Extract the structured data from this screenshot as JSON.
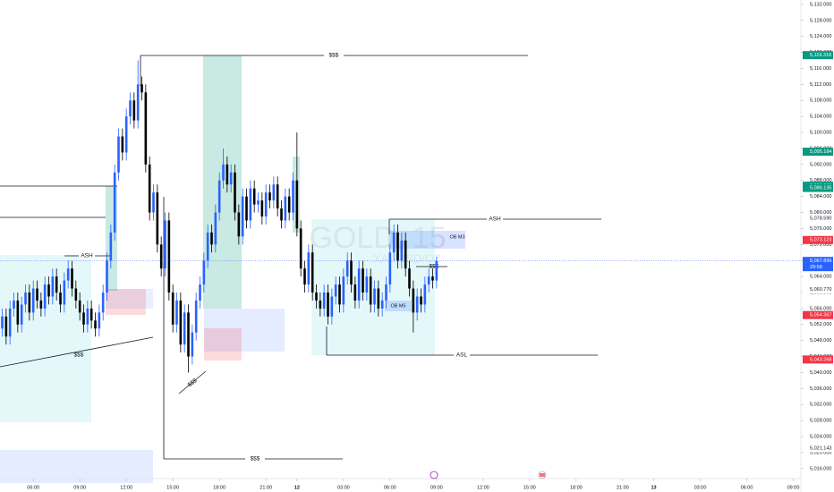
{
  "chart_data": {
    "type": "candlestick",
    "watermark": "GOLD, 15",
    "watermark_sub": "XAUUSD/OZ",
    "up_color": "#2962ff",
    "down_color": "#000000",
    "countdown": "29:58",
    "xlim": [
      -0.58,
      205.96
    ],
    "ylim": [
      5013.5,
      5133.1
    ],
    "xticks": [
      {
        "value": 8,
        "label": "06:00"
      },
      {
        "value": 20,
        "label": "09:00"
      },
      {
        "value": 32,
        "label": "12:00"
      },
      {
        "value": 44,
        "label": "15:00"
      },
      {
        "value": 56,
        "label": "18:00"
      },
      {
        "value": 68,
        "label": "21:00"
      },
      {
        "value": 76,
        "label": "12"
      },
      {
        "value": 88,
        "label": "03:00"
      },
      {
        "value": 100,
        "label": "06:00"
      },
      {
        "value": 112,
        "label": "09:00"
      },
      {
        "value": 124,
        "label": "12:00"
      },
      {
        "value": 136,
        "label": "15:00"
      },
      {
        "value": 148,
        "label": "18:00"
      },
      {
        "value": 160,
        "label": "21:00"
      },
      {
        "value": 168,
        "label": "13"
      },
      {
        "value": 180,
        "label": "03:00"
      },
      {
        "value": 192,
        "label": "06:00"
      },
      {
        "value": 204,
        "label": "09:00"
      }
    ],
    "yticks": [
      {
        "value": 5016,
        "label": "5,016.000"
      },
      {
        "value": 5020,
        "label": "5,020.000"
      },
      {
        "value": 5024,
        "label": "5,024.000"
      },
      {
        "value": 5028,
        "label": "5,028.000"
      },
      {
        "value": 5032,
        "label": "5,032.000"
      },
      {
        "value": 5036,
        "label": "5,036.000"
      },
      {
        "value": 5040,
        "label": "5,040.000"
      },
      {
        "value": 5044,
        "label": "5,044.000"
      },
      {
        "value": 5048,
        "label": "5,048.000"
      },
      {
        "value": 5052,
        "label": "5,052.000"
      },
      {
        "value": 5056,
        "label": "5,056.000"
      },
      {
        "value": 5060,
        "label": "5,060.000"
      },
      {
        "value": 5064,
        "label": "5,064.000"
      },
      {
        "value": 5068,
        "label": "5,068.000"
      },
      {
        "value": 5072,
        "label": "5,072.000"
      },
      {
        "value": 5076,
        "label": "5,076.000"
      },
      {
        "value": 5080,
        "label": "5,080.000"
      },
      {
        "value": 5084,
        "label": "5,084.000"
      },
      {
        "value": 5088,
        "label": "5,088.000"
      },
      {
        "value": 5092,
        "label": "5,092.000"
      },
      {
        "value": 5096,
        "label": "5,096.000"
      },
      {
        "value": 5100,
        "label": "5,100.000"
      },
      {
        "value": 5104,
        "label": "5,104.000"
      },
      {
        "value": 5108,
        "label": "5,108.000"
      },
      {
        "value": 5112,
        "label": "5,112.000"
      },
      {
        "value": 5116,
        "label": "5,116.000"
      },
      {
        "value": 5120,
        "label": "5,120.000"
      },
      {
        "value": 5124,
        "label": "5,124.000"
      },
      {
        "value": 5128,
        "label": "5,128.000"
      },
      {
        "value": 5132,
        "label": "5,132.000"
      }
    ],
    "price_labels": [
      {
        "value": 5119.318,
        "label": "5,119.318",
        "color": "#089981"
      },
      {
        "value": 5095.184,
        "label": "5,095.184",
        "color": "#089981"
      },
      {
        "value": 5086.698,
        "label": "5,086.698",
        "color": "#089981"
      },
      {
        "value": 5086.135,
        "label": "5,086.135",
        "color": "#089981"
      },
      {
        "value": 5078.59,
        "label": "5,078.590",
        "color": "#ffffff"
      },
      {
        "value": 5073.123,
        "label": "5,073.123",
        "color": "#f23645"
      },
      {
        "value": 5067.896,
        "label": "5,067.896",
        "color": "#2962ff"
      },
      {
        "value": 5060.77,
        "label": "5,060.770",
        "color": "#ffffff"
      },
      {
        "value": 5054.367,
        "label": "5,054.367",
        "color": "#f23645"
      },
      {
        "value": 5043.268,
        "label": "5,043.268",
        "color": "#f23645"
      },
      {
        "value": 5021.143,
        "label": "5,021.143",
        "color": "#ffffff"
      }
    ],
    "annotations": [
      "$$$",
      "ASH",
      "$$$",
      "$$$",
      "$$$",
      "ASH",
      "OB M3",
      "$$$",
      "OB M5",
      "ASL"
    ],
    "open": [
      5051,
      5054,
      5049,
      5056,
      5058,
      5052,
      5057,
      5060,
      5055,
      5061,
      5058,
      5056,
      5062,
      5059,
      5064,
      5060,
      5057,
      5063,
      5066,
      5061,
      5058,
      5055,
      5052,
      5056,
      5053,
      5051,
      5055,
      5060,
      5068,
      5075,
      5090,
      5099,
      5095,
      5104,
      5108,
      5103,
      5112,
      5110,
      5092,
      5080,
      5085,
      5072,
      5066,
      5078,
      5060,
      5052,
      5058,
      5047,
      5055,
      5044,
      5050,
      5058,
      5062,
      5068,
      5075,
      5072,
      5080,
      5088,
      5092,
      5087,
      5090,
      5080,
      5074,
      5084,
      5078,
      5086,
      5082,
      5083,
      5079,
      5085,
      5083,
      5087,
      5081,
      5078,
      5084,
      5080,
      5088,
      5076,
      5066,
      5062,
      5070,
      5060,
      5058,
      5056,
      5060,
      5054,
      5059,
      5062,
      5057,
      5064,
      5068,
      5062,
      5058,
      5066,
      5060,
      5064,
      5057,
      5061,
      5056,
      5058,
      5062,
      5070,
      5075,
      5068,
      5073,
      5066,
      5061,
      5055,
      5059,
      5057,
      5062,
      5064,
      5063
    ],
    "high": [
      5056,
      5056,
      5058,
      5060,
      5060,
      5059,
      5062,
      5062,
      5063,
      5063,
      5060,
      5064,
      5064,
      5066,
      5066,
      5062,
      5065,
      5068,
      5068,
      5063,
      5060,
      5057,
      5058,
      5058,
      5055,
      5057,
      5062,
      5070,
      5077,
      5092,
      5101,
      5101,
      5106,
      5110,
      5110,
      5118,
      5114,
      5112,
      5094,
      5087,
      5087,
      5074,
      5080,
      5080,
      5062,
      5060,
      5060,
      5057,
      5057,
      5052,
      5060,
      5064,
      5070,
      5077,
      5077,
      5082,
      5090,
      5096,
      5094,
      5092,
      5092,
      5082,
      5086,
      5086,
      5088,
      5088,
      5085,
      5085,
      5087,
      5087,
      5089,
      5089,
      5083,
      5086,
      5086,
      5090,
      5100,
      5078,
      5068,
      5072,
      5072,
      5062,
      5060,
      5062,
      5062,
      5061,
      5064,
      5064,
      5066,
      5070,
      5070,
      5064,
      5068,
      5068,
      5066,
      5066,
      5063,
      5063,
      5060,
      5064,
      5072,
      5077,
      5077,
      5075,
      5075,
      5068,
      5063,
      5061,
      5061,
      5064,
      5066,
      5066,
      5069
    ],
    "low": [
      5049,
      5047,
      5047,
      5054,
      5050,
      5050,
      5055,
      5053,
      5053,
      5056,
      5054,
      5054,
      5057,
      5057,
      5058,
      5055,
      5055,
      5061,
      5059,
      5056,
      5053,
      5050,
      5050,
      5051,
      5049,
      5049,
      5053,
      5058,
      5066,
      5073,
      5088,
      5093,
      5093,
      5102,
      5101,
      5101,
      5108,
      5090,
      5078,
      5078,
      5070,
      5064,
      5064,
      5058,
      5050,
      5050,
      5045,
      5045,
      5040,
      5042,
      5048,
      5056,
      5060,
      5066,
      5070,
      5070,
      5078,
      5086,
      5085,
      5085,
      5078,
      5072,
      5072,
      5076,
      5076,
      5080,
      5080,
      5077,
      5077,
      5081,
      5081,
      5079,
      5076,
      5076,
      5078,
      5078,
      5074,
      5064,
      5060,
      5060,
      5058,
      5056,
      5054,
      5054,
      5052,
      5052,
      5057,
      5055,
      5055,
      5062,
      5060,
      5056,
      5056,
      5058,
      5058,
      5055,
      5055,
      5054,
      5054,
      5056,
      5060,
      5068,
      5066,
      5066,
      5064,
      5059,
      5050,
      5053,
      5055,
      5055,
      5060,
      5061,
      5061
    ],
    "close": [
      5054,
      5049,
      5056,
      5058,
      5052,
      5057,
      5060,
      5055,
      5061,
      5058,
      5056,
      5062,
      5059,
      5064,
      5060,
      5057,
      5063,
      5066,
      5061,
      5058,
      5055,
      5052,
      5056,
      5053,
      5051,
      5055,
      5060,
      5068,
      5075,
      5090,
      5099,
      5095,
      5104,
      5108,
      5103,
      5112,
      5110,
      5092,
      5080,
      5085,
      5072,
      5066,
      5078,
      5060,
      5052,
      5058,
      5047,
      5055,
      5044,
      5050,
      5058,
      5062,
      5068,
      5075,
      5072,
      5080,
      5088,
      5092,
      5087,
      5090,
      5080,
      5074,
      5084,
      5078,
      5086,
      5082,
      5083,
      5079,
      5085,
      5083,
      5087,
      5081,
      5078,
      5084,
      5080,
      5088,
      5076,
      5066,
      5062,
      5070,
      5060,
      5058,
      5056,
      5060,
      5054,
      5059,
      5062,
      5057,
      5064,
      5068,
      5062,
      5058,
      5066,
      5060,
      5064,
      5057,
      5061,
      5056,
      5058,
      5062,
      5070,
      5075,
      5068,
      5073,
      5066,
      5061,
      5055,
      5059,
      5057,
      5062,
      5064,
      5063,
      5067.9
    ]
  }
}
